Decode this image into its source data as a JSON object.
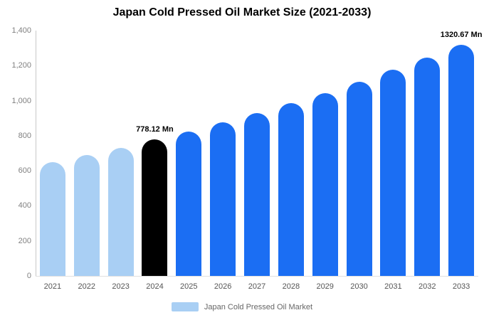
{
  "chart_data": {
    "type": "bar",
    "title": "Japan Cold Pressed Oil Market Size (2021-2033)",
    "xlabel": "",
    "ylabel": "",
    "categories": [
      "2021",
      "2022",
      "2023",
      "2024",
      "2025",
      "2026",
      "2027",
      "2028",
      "2029",
      "2030",
      "2031",
      "2032",
      "2033"
    ],
    "values": [
      649,
      690,
      731,
      778.12,
      825,
      875,
      928,
      985,
      1044,
      1108,
      1175,
      1246,
      1320.67
    ],
    "bar_colors": [
      "#A9CFF4",
      "#A9CFF4",
      "#A9CFF4",
      "#000000",
      "#1B6EF3",
      "#1B6EF3",
      "#1B6EF3",
      "#1B6EF3",
      "#1B6EF3",
      "#1B6EF3",
      "#1B6EF3",
      "#1B6EF3",
      "#1B6EF3"
    ],
    "annotations": [
      {
        "index": 3,
        "text": "778.12 Mn"
      },
      {
        "index": 12,
        "text": "1320.67 Mn"
      }
    ],
    "ylim": [
      0,
      1400
    ],
    "yticks": [
      0,
      200,
      400,
      600,
      800,
      1000,
      1200,
      1400
    ],
    "ytick_labels": [
      "0",
      "200",
      "400",
      "600",
      "800",
      "1,000",
      "1,200",
      "1,400"
    ],
    "grid": false,
    "legend": {
      "position": "bottom",
      "items": [
        {
          "label": "Japan Cold Pressed Oil Market",
          "color": "#A9CFF4"
        }
      ]
    }
  },
  "colors": {
    "background": "#ffffff",
    "light_blue": "#A9CFF4",
    "bright_blue": "#1B6EF3",
    "highlight_black": "#000000",
    "axis_line": "#c9c9c9",
    "tick_text": "#808080",
    "xlabel_text": "#555555",
    "legend_text": "#666666"
  }
}
